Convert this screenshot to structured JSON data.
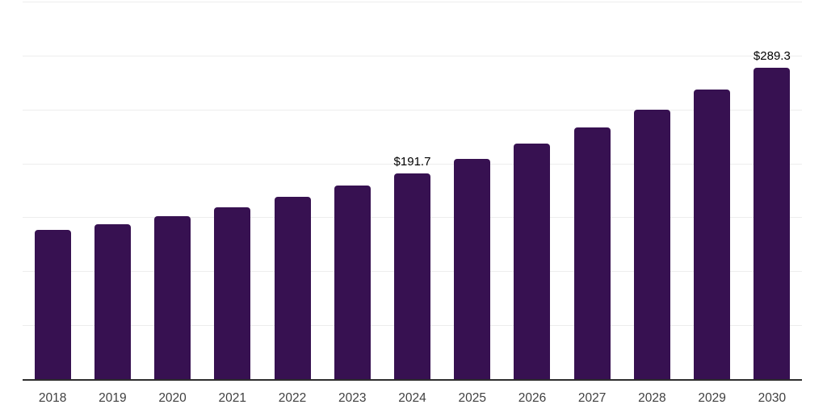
{
  "page": {
    "background_color": "#ffffff"
  },
  "chart_data": {
    "type": "bar",
    "title": "",
    "xlabel": "",
    "ylabel": "",
    "categories": [
      "2018",
      "2019",
      "2020",
      "2021",
      "2022",
      "2023",
      "2024",
      "2025",
      "2026",
      "2027",
      "2028",
      "2029",
      "2030"
    ],
    "values": [
      139.0,
      144.6,
      151.6,
      160.2,
      169.7,
      180.1,
      191.7,
      205.1,
      219.2,
      234.2,
      250.9,
      269.3,
      289.3
    ],
    "data_labels": [
      {
        "category": "2024",
        "text": "$191.7"
      },
      {
        "category": "2030",
        "text": "$289.3"
      }
    ],
    "unit_prefix": "$",
    "ylim": [
      0,
      350
    ],
    "grid_step": 50,
    "grid": true,
    "legend": false,
    "bar_color": "#371151",
    "gridline_color": "#ededed",
    "axis_line_color": "#2d2d2d",
    "tick_label_color": "#404040",
    "value_label_color": "#000000"
  }
}
